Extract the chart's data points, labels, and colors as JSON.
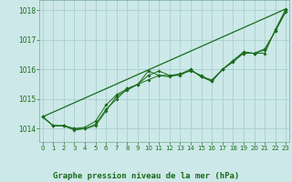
{
  "title": "Graphe pression niveau de la mer (hPa)",
  "background_color": "#cce8e8",
  "grid_color": "#aacece",
  "line_color": "#1a6b1a",
  "x_ticks": [
    0,
    1,
    2,
    3,
    4,
    5,
    6,
    7,
    8,
    9,
    10,
    11,
    12,
    13,
    14,
    15,
    16,
    17,
    18,
    19,
    20,
    21,
    22,
    23
  ],
  "y_ticks": [
    1014,
    1015,
    1016,
    1017,
    1018
  ],
  "ylim": [
    1013.55,
    1018.35
  ],
  "xlim": [
    -0.3,
    23.3
  ],
  "series": [
    [
      1014.4,
      1014.1,
      1014.1,
      1014.0,
      1014.0,
      1014.1,
      1014.6,
      1015.1,
      1015.3,
      1015.5,
      1015.8,
      1015.95,
      1015.8,
      1015.85,
      1015.95,
      1015.8,
      1015.6,
      1016.0,
      1016.3,
      1016.6,
      1016.55,
      1016.55,
      1017.35,
      1018.05
    ],
    [
      1014.4,
      1014.1,
      1014.1,
      1014.0,
      1014.05,
      1014.25,
      1014.8,
      1015.15,
      1015.35,
      1015.5,
      1015.65,
      1015.8,
      1015.8,
      1015.8,
      1016.0,
      1015.75,
      1015.65,
      1016.0,
      1016.3,
      1016.55,
      1016.55,
      1016.7,
      1017.3,
      1018.0
    ],
    [
      1014.4,
      1014.1,
      1014.1,
      1013.95,
      1014.0,
      1014.15,
      1014.65,
      1015.0,
      1015.35,
      1015.5,
      1015.95,
      1015.8,
      1015.75,
      1015.85,
      1016.0,
      1015.75,
      1015.6,
      1016.0,
      1016.25,
      1016.55,
      1016.55,
      1016.65,
      1017.3,
      1017.95
    ]
  ],
  "trend_x": [
    0,
    23
  ],
  "trend_y": [
    1014.4,
    1018.05
  ]
}
